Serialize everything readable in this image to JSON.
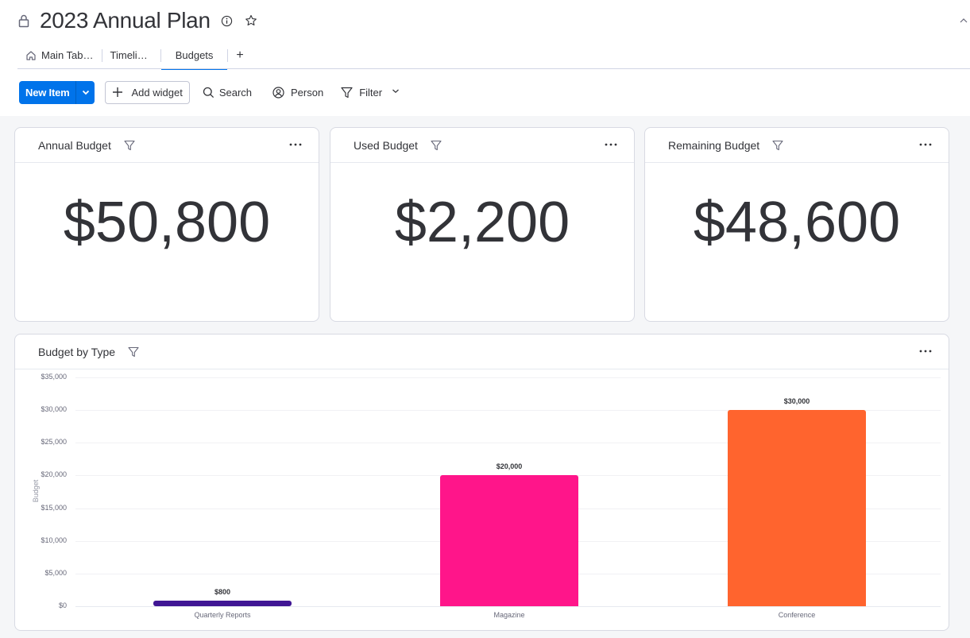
{
  "header": {
    "title": "2023 Annual Plan",
    "tabs": [
      {
        "label": "Main Tab…",
        "icon": "home-icon",
        "active": false
      },
      {
        "label": "Timeli…",
        "active": false
      },
      {
        "label": "Budgets",
        "active": true
      }
    ],
    "add_tab_label": "+"
  },
  "toolbar": {
    "new_item_label": "New Item",
    "add_widget_label": "Add widget",
    "search_label": "Search",
    "person_label": "Person",
    "filter_label": "Filter"
  },
  "colors": {
    "accent": "#0073ea",
    "quarterly_reports": "#401694",
    "magazine": "#ff158a",
    "conference": "#ff642e"
  },
  "widgets": {
    "annual": {
      "title": "Annual Budget",
      "value": "$50,800"
    },
    "used": {
      "title": "Used Budget",
      "value": "$2,200"
    },
    "remaining": {
      "title": "Remaining Budget",
      "value": "$48,600"
    },
    "by_type": {
      "title": "Budget by Type"
    }
  },
  "chart_data": {
    "type": "bar",
    "title": "Budget by Type",
    "xlabel": "",
    "ylabel": "Budget",
    "categories": [
      "Quarterly Reports",
      "Magazine",
      "Conference"
    ],
    "values": [
      800,
      20000,
      30000
    ],
    "value_labels": [
      "$800",
      "$20,000",
      "$30,000"
    ],
    "colors": [
      "#401694",
      "#ff158a",
      "#ff642e"
    ],
    "ylim": [
      0,
      35000
    ],
    "yticks": [
      "$35,000",
      "$30,000",
      "$25,000",
      "$20,000",
      "$15,000",
      "$10,000",
      "$5,000",
      "$0"
    ],
    "grid": true,
    "legend": "none"
  }
}
